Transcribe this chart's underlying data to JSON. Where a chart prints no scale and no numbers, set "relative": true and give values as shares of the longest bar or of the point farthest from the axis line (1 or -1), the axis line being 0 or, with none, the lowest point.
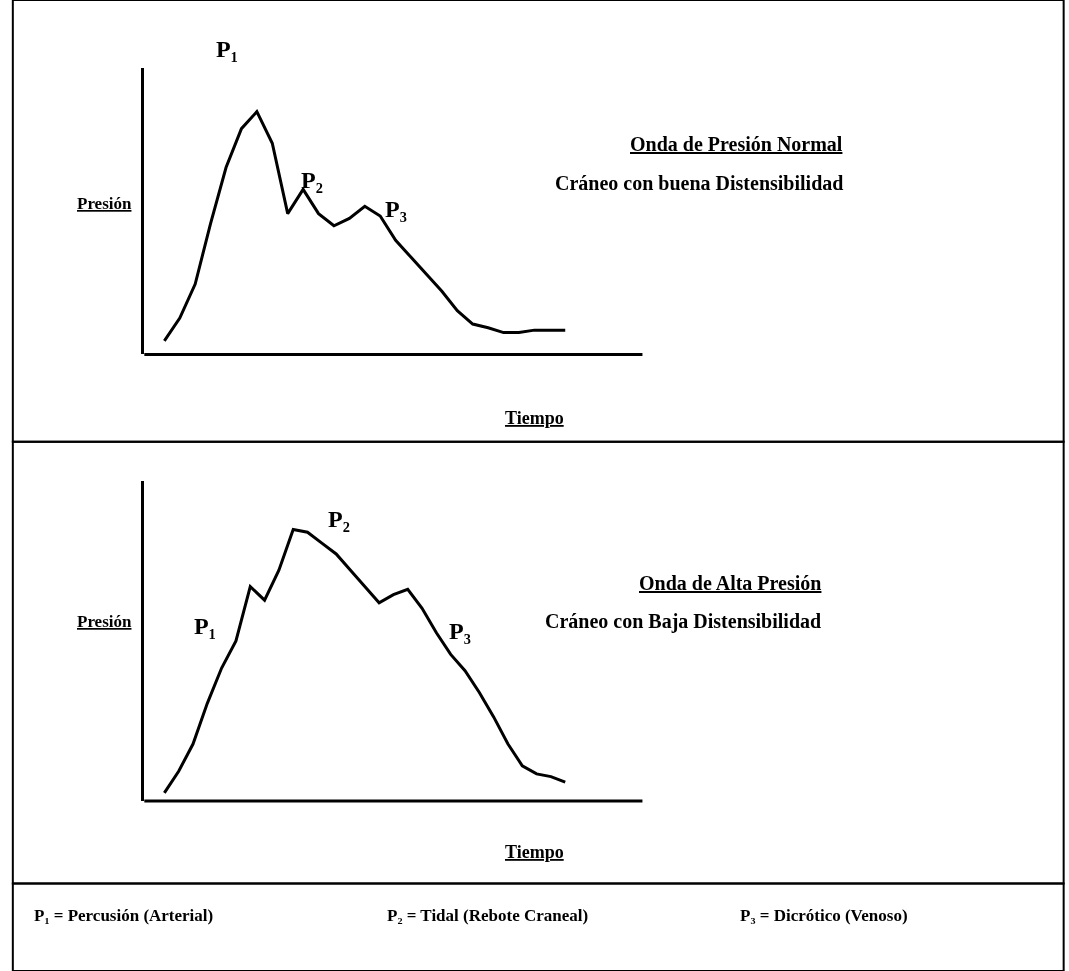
{
  "chart_data": [
    {
      "type": "line",
      "xlabel": "Tiempo",
      "ylabel": "Presión",
      "relative": true,
      "color": "#000000",
      "marker": "none",
      "line_style": "solid",
      "categories": [
        null,
        null,
        null,
        null,
        null,
        null,
        null,
        null,
        null,
        null,
        null,
        null,
        null,
        null,
        null,
        null,
        null,
        null,
        null,
        null,
        null,
        null,
        null,
        null,
        null,
        null,
        null
      ],
      "values": [
        0.056,
        0.15,
        0.29,
        0.54,
        0.77,
        0.93,
        1.0,
        0.87,
        0.58,
        0.68,
        0.58,
        0.53,
        0.56,
        0.61,
        0.57,
        0.47,
        0.4,
        0.33,
        0.26,
        0.18,
        0.125,
        0.11,
        0.09,
        0.09,
        0.1,
        0.1,
        0.1
      ],
      "annotations": [
        "P₁",
        "P₂",
        "P₃",
        "Onda de Presión Normal",
        "Cráneo con buena Distensibilidad"
      ]
    },
    {
      "type": "line",
      "xlabel": "Tiempo",
      "ylabel": "Presión",
      "relative": true,
      "color": "#000000",
      "marker": "none",
      "line_style": "solid",
      "categories": [
        null,
        null,
        null,
        null,
        null,
        null,
        null,
        null,
        null,
        null,
        null,
        null,
        null,
        null,
        null,
        null,
        null,
        null,
        null,
        null,
        null,
        null,
        null,
        null,
        null,
        null,
        null,
        null,
        null
      ],
      "values": [
        0.03,
        0.11,
        0.21,
        0.36,
        0.49,
        0.59,
        0.79,
        0.74,
        0.85,
        1.0,
        0.99,
        0.95,
        0.91,
        0.85,
        0.79,
        0.73,
        0.76,
        0.78,
        0.71,
        0.62,
        0.54,
        0.48,
        0.4,
        0.31,
        0.21,
        0.13,
        0.1,
        0.09,
        0.07
      ],
      "annotations": [
        "P₁",
        "P₂",
        "P₃",
        "Onda de Alta Presión",
        "Cráneo con Baja Distensibilidad"
      ]
    },
    {
      "type": "other",
      "annotations": [
        "P₁ = Percusión (Arterial)",
        "P₂ = Tidal (Rebote Craneal)",
        "P₃ = Dicrótico (Venoso)"
      ]
    }
  ]
}
